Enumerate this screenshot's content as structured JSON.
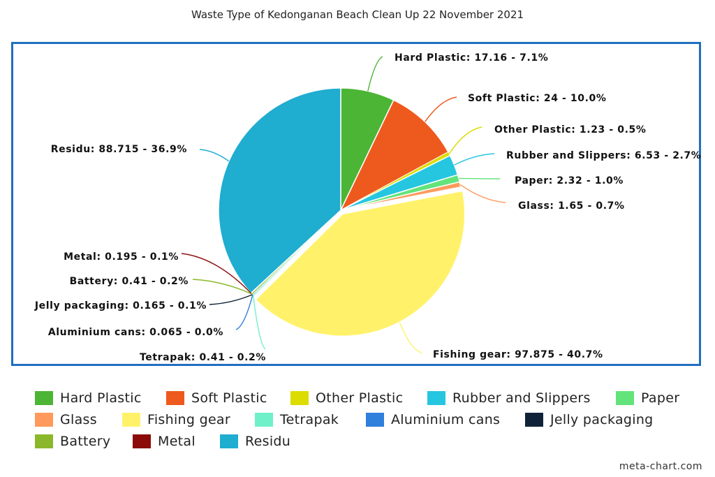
{
  "chart_data": {
    "type": "pie",
    "title": "Waste Type of Kedonganan Beach Clean Up 22 November 2021",
    "slices": [
      {
        "name": "Hard Plastic",
        "value": 17.16,
        "label": "Hard Plastic: 17.16 - 7.1%",
        "color": "#4cb535"
      },
      {
        "name": "Soft Plastic",
        "value": 24,
        "label": "Soft Plastic: 24 - 10.0%",
        "color": "#ee5a1e"
      },
      {
        "name": "Other Plastic",
        "value": 1.23,
        "label": "Other Plastic: 1.23 - 0.5%",
        "color": "#dcdc00"
      },
      {
        "name": "Rubber and Slippers",
        "value": 6.53,
        "label": "Rubber and Slippers: 6.53 - 2.7%",
        "color": "#26c6e0"
      },
      {
        "name": "Paper",
        "value": 2.32,
        "label": "Paper: 2.32 - 1.0%",
        "color": "#62e47a"
      },
      {
        "name": "Glass",
        "value": 1.65,
        "label": "Glass: 1.65 - 0.7%",
        "color": "#ff9a5c"
      },
      {
        "name": "Fishing gear",
        "value": 97.875,
        "label": "Fishing gear: 97.875 - 40.7%",
        "color": "#fff26a"
      },
      {
        "name": "Tetrapak",
        "value": 0.41,
        "label": "Tetrapak: 0.41 - 0.2%",
        "color": "#6ff0c8"
      },
      {
        "name": "Aluminium cans",
        "value": 0.065,
        "label": "Aluminium cans: 0.065 - 0.0%",
        "color": "#2f7fdc"
      },
      {
        "name": "Jelly packaging",
        "value": 0.165,
        "label": "Jelly packaging: 0.165 - 0.1%",
        "color": "#0f2238"
      },
      {
        "name": "Battery",
        "value": 0.41,
        "label": "Battery: 0.41 - 0.2%",
        "color": "#8ab82a"
      },
      {
        "name": "Metal",
        "value": 0.195,
        "label": "Metal: 0.195 - 0.1%",
        "color": "#8b0a0a"
      },
      {
        "name": "Residu",
        "value": 88.715,
        "label": "Residu: 88.715 - 36.9%",
        "color": "#1fadd0"
      }
    ],
    "legend_placement": "bottom"
  },
  "footer": "meta-chart.com"
}
